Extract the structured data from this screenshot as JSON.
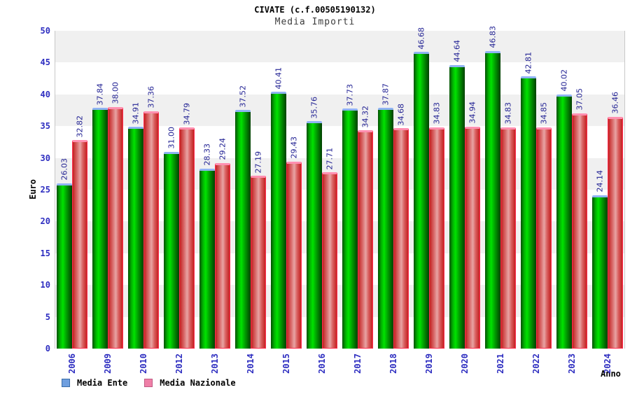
{
  "header": {
    "title": "CIVATE (c.f.00505190132)",
    "subtitle": "Media Importi"
  },
  "chart_data": {
    "type": "bar",
    "title": "CIVATE (c.f.00505190132)",
    "subtitle": "Media Importi",
    "xlabel": "Anno",
    "ylabel": "Euro",
    "ylim": [
      0,
      50
    ],
    "ytick_step": 5,
    "grid": "alternating horizontal bands",
    "legend_position": "bottom-left",
    "value_labels": "rotated 90deg above bars, 2 decimals",
    "categories": [
      "2006",
      "2009",
      "2010",
      "2012",
      "2013",
      "2014",
      "2015",
      "2016",
      "2017",
      "2018",
      "2019",
      "2020",
      "2021",
      "2022",
      "2023",
      "2024"
    ],
    "series": [
      {
        "name": "Media Ente",
        "color_main": "#00e300",
        "values": [
          26.03,
          37.84,
          34.91,
          31.0,
          28.33,
          37.52,
          40.41,
          35.76,
          37.73,
          37.87,
          46.68,
          44.64,
          46.83,
          42.81,
          40.02,
          24.14
        ]
      },
      {
        "name": "Media Nazionale",
        "color_main": "#e8a4a4",
        "values": [
          32.82,
          38.0,
          37.36,
          34.79,
          29.24,
          27.19,
          29.43,
          27.71,
          34.32,
          34.68,
          34.83,
          34.94,
          34.83,
          34.85,
          37.05,
          36.46
        ]
      }
    ]
  },
  "legend": {
    "items": [
      {
        "label": "Media Ente",
        "swatch_color": "#6f9fdf"
      },
      {
        "label": "Media Nazionale",
        "swatch_color": "#ef7fa7"
      }
    ]
  },
  "colors": {
    "tick_text": "#2d2dc0",
    "value_label_text": "#232394",
    "band_gray": "#f0f0f0",
    "plot_border": "#c8c8c8",
    "green_bar_cap": "#8fb3f3",
    "red_bar_outline": "#ff2e50",
    "red_bar_cap": "#ff8fb0"
  }
}
